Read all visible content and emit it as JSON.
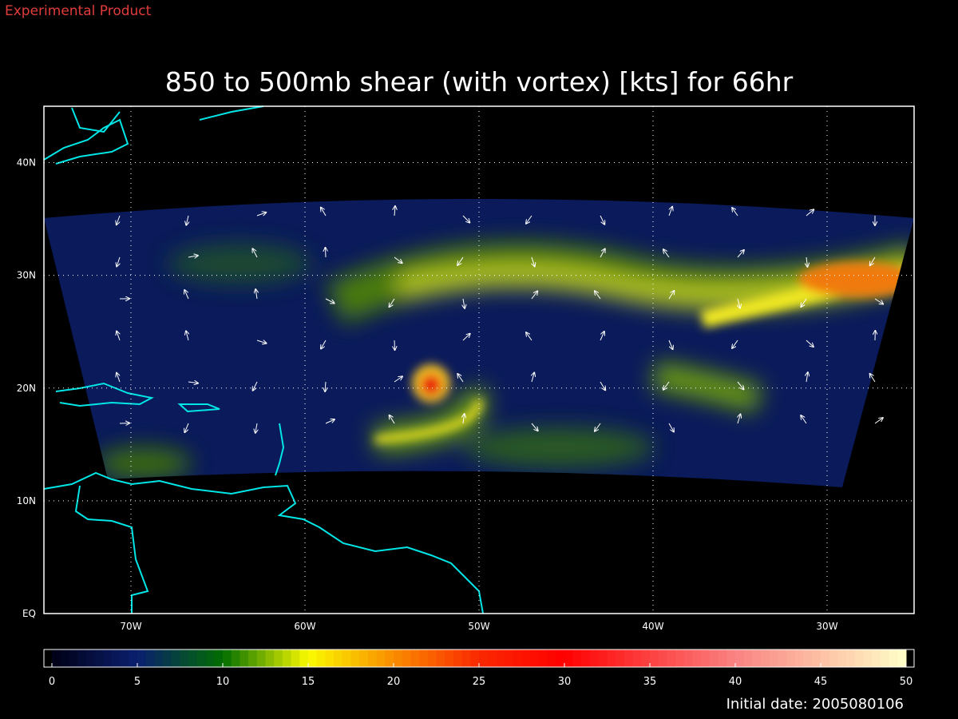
{
  "header": {
    "label": "Experimental Product"
  },
  "title": "850 to 500mb shear (with vortex) [kts] for 66hr",
  "map": {
    "lat_ticks": [
      {
        "value": 40,
        "label": "40N"
      },
      {
        "value": 30,
        "label": "30N"
      },
      {
        "value": 20,
        "label": "20N"
      },
      {
        "value": 10,
        "label": "10N"
      },
      {
        "value": 0,
        "label": "EQ"
      }
    ],
    "lon_ticks": [
      {
        "value": -70,
        "label": "70W"
      },
      {
        "value": -60,
        "label": "60W"
      },
      {
        "value": -50,
        "label": "50W"
      },
      {
        "value": -40,
        "label": "40W"
      },
      {
        "value": -30,
        "label": "30W"
      }
    ],
    "lat_range": [
      0,
      45
    ],
    "lon_range": [
      -75,
      -25
    ]
  },
  "colorbar": {
    "range": [
      0,
      50
    ],
    "ticks": [
      0,
      5,
      10,
      15,
      20,
      25,
      30,
      35,
      40,
      45,
      50
    ]
  },
  "footer": {
    "initial_date": "Initial date: 2005080106"
  }
}
